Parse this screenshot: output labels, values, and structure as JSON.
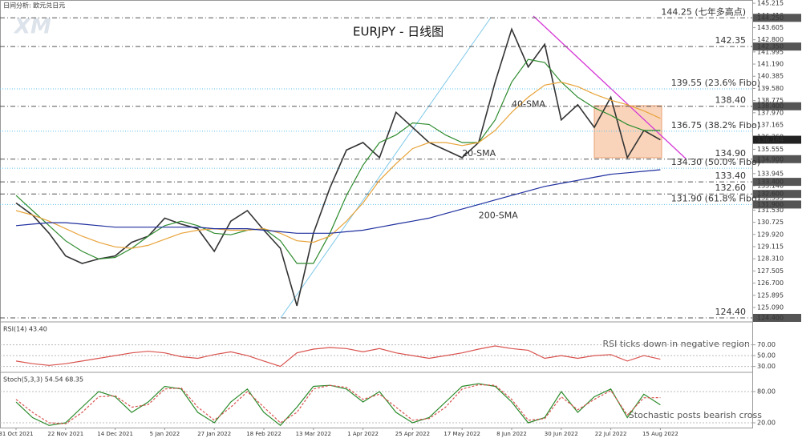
{
  "header": "日间分析: 欧元兑日元",
  "logo": "XM",
  "chart_data": [
    {
      "type": "line",
      "title": "EURJPY - 日线图",
      "categories": [
        "31 Oct 2021",
        null,
        null,
        "22 Nov 2021",
        null,
        null,
        "14 Dec 2021",
        null,
        null,
        "5 Jan 2022",
        null,
        null,
        "27 Jan 2022",
        null,
        null,
        "18 Feb 2022",
        null,
        null,
        "13 Mar 2022",
        null,
        null,
        "1 Apr 2022",
        null,
        null,
        "25 Apr 2022",
        null,
        null,
        "17 May 2022",
        null,
        null,
        "8 Jun 2022",
        null,
        null,
        "30 Jun 2022",
        null,
        null,
        "22 Jul 2022",
        null,
        null,
        "15 Aug 2022"
      ],
      "series": [
        {
          "color": "#333333",
          "values": [
            132.0,
            131.2,
            130.0,
            128.5,
            128.0,
            128.3,
            128.5,
            129.4,
            129.8,
            131.0,
            130.6,
            130.3,
            128.8,
            130.8,
            131.5,
            130.2,
            129.0,
            125.2,
            130.0,
            133.0,
            135.5,
            136.0,
            135.0,
            138.0,
            137.0,
            136.0,
            135.5,
            135.0,
            136.0,
            140.0,
            143.5,
            141.0,
            142.5,
            137.5,
            138.5,
            137.0,
            139.0,
            135.0,
            136.8,
            136.18
          ]
        },
        {
          "name": "20-SMA",
          "color": "#2e8b2e",
          "values": [
            132.5,
            131.5,
            130.5,
            129.5,
            128.8,
            128.3,
            128.4,
            129.0,
            129.8,
            130.5,
            130.8,
            130.5,
            130.0,
            129.9,
            130.2,
            130.3,
            129.5,
            128.0,
            128.0,
            130.0,
            132.5,
            134.5,
            136.0,
            136.5,
            137.3,
            137.2,
            136.5,
            136.0,
            136.0,
            137.5,
            140.0,
            141.5,
            141.3,
            140.0,
            139.0,
            138.3,
            137.8,
            137.2,
            136.8,
            136.8
          ]
        },
        {
          "name": "40-SMA",
          "color": "#e8a33a",
          "values": [
            131.5,
            131.2,
            130.8,
            130.3,
            129.8,
            129.4,
            129.1,
            129.0,
            129.2,
            129.6,
            130.0,
            130.2,
            130.3,
            130.2,
            130.2,
            130.3,
            130.0,
            129.5,
            129.4,
            129.8,
            130.8,
            132.0,
            133.5,
            134.6,
            135.6,
            136.0,
            136.0,
            135.8,
            136.0,
            136.8,
            138.0,
            139.0,
            139.8,
            140.0,
            139.7,
            139.2,
            138.8,
            138.5,
            138.1,
            137.6
          ]
        },
        {
          "name": "200-SMA",
          "color": "#1f2f9e",
          "values": [
            130.5,
            130.6,
            130.7,
            130.7,
            130.6,
            130.5,
            130.4,
            130.4,
            130.4,
            130.4,
            130.4,
            130.4,
            130.3,
            130.3,
            130.3,
            130.2,
            130.1,
            130.0,
            130.0,
            130.0,
            130.1,
            130.2,
            130.4,
            130.6,
            130.8,
            131.0,
            131.3,
            131.6,
            131.9,
            132.2,
            132.5,
            132.8,
            133.1,
            133.3,
            133.5,
            133.7,
            133.9,
            134.0,
            134.1,
            134.2
          ]
        }
      ],
      "ylim": [
        124.24,
        145.43
      ],
      "yticks": [
        {
          "value": 145.215,
          "label": "145.215"
        },
        {
          "value": 144.41,
          "label": "144.410"
        },
        {
          "value": 143.605,
          "label": "143.605"
        },
        {
          "value": 142.8,
          "label": "142.800"
        },
        {
          "value": 141.995,
          "label": "141.995"
        },
        {
          "value": 141.19,
          "label": "141.190"
        },
        {
          "value": 140.385,
          "label": "140.385"
        },
        {
          "value": 139.58,
          "label": "139.580"
        },
        {
          "value": 138.775,
          "label": "138.775"
        },
        {
          "value": 137.97,
          "label": "137.970"
        },
        {
          "value": 137.165,
          "label": "137.165"
        },
        {
          "value": 136.36,
          "label": "136.360"
        },
        {
          "value": 135.555,
          "label": "135.555"
        },
        {
          "value": 134.75,
          "label": "134.750"
        },
        {
          "value": 133.945,
          "label": "133.945"
        },
        {
          "value": 133.14,
          "label": "133.140"
        },
        {
          "value": 132.335,
          "label": "132.335"
        },
        {
          "value": 131.53,
          "label": "131.530"
        },
        {
          "value": 130.725,
          "label": "130.725"
        },
        {
          "value": 129.92,
          "label": "129.920"
        },
        {
          "value": 129.115,
          "label": "129.115"
        },
        {
          "value": 128.31,
          "label": "128.310"
        },
        {
          "value": 127.505,
          "label": "127.505"
        },
        {
          "value": 126.7,
          "label": "126.700"
        },
        {
          "value": 125.895,
          "label": "125.895"
        },
        {
          "value": 125.09,
          "label": "125.090"
        },
        {
          "value": 124.285,
          "label": "124.285"
        }
      ],
      "levels": [
        {
          "value": 144.25,
          "text": "144.25 (七年多高点)",
          "axis_label": "144.250",
          "color": "#e8262a",
          "style": "level"
        },
        {
          "value": 142.35,
          "text": "142.35",
          "axis_label": "142.350",
          "color": "#e8262a",
          "style": "level"
        },
        {
          "value": 139.55,
          "text": "139.55 (23.6% Fibo)",
          "color": "#2aa3d8",
          "style": "fibo"
        },
        {
          "value": 138.4,
          "text": "138.40",
          "axis_label": "138.400",
          "color": "#e8262a",
          "style": "level"
        },
        {
          "value": 136.75,
          "text": "136.75 (38.2% Fibo)",
          "color": "#2aa3d8",
          "style": "fibo"
        },
        {
          "value": 134.9,
          "text": "134.90",
          "axis_label": "134.900",
          "color": "#2c6e2c",
          "style": "level"
        },
        {
          "value": 134.3,
          "text": "134.30 (50.0% Fibo)",
          "color": "#2aa3d8",
          "style": "fibo"
        },
        {
          "value": 133.4,
          "text": "133.40",
          "axis_label": "133.400",
          "color": "#2c6e2c",
          "style": "level"
        },
        {
          "value": 132.6,
          "text": "132.60",
          "axis_label": "132.600",
          "color": "#2c6e2c",
          "style": "level"
        },
        {
          "value": 131.9,
          "text": "131.90 (61.8% Fibo)",
          "axis_label": "131.900",
          "color": "#2aa3d8",
          "style": "fibo"
        },
        {
          "value": 124.4,
          "text": "124.40",
          "axis_label": "124.400",
          "color": "#2c6e2c",
          "style": "level"
        }
      ],
      "last_price": {
        "value": 136.184,
        "label": "136.184"
      }
    },
    {
      "type": "line",
      "title": "RSI(14) 43.40",
      "annotation": "RSI ticks down in negative region",
      "series": [
        {
          "color": "#d9534f",
          "values": [
            40,
            35,
            32,
            35,
            40,
            45,
            50,
            55,
            58,
            55,
            48,
            45,
            52,
            57,
            50,
            40,
            30,
            55,
            62,
            65,
            63,
            57,
            63,
            55,
            50,
            45,
            50,
            55,
            62,
            68,
            63,
            60,
            45,
            50,
            45,
            50,
            52,
            40,
            50,
            43.4
          ]
        }
      ],
      "ylim": [
        22,
        108
      ],
      "yticks": [
        {
          "value": 70,
          "label": "70.00"
        },
        {
          "value": 50,
          "label": "50.00"
        },
        {
          "value": 30,
          "label": "30.00"
        }
      ]
    },
    {
      "type": "line",
      "title": "Stoch(5,3,3) 54.54 68.35",
      "annotation": "Stochastic posts bearish cross",
      "series": [
        {
          "color": "#2a8a2a",
          "values": [
            60,
            30,
            15,
            20,
            50,
            80,
            70,
            40,
            60,
            90,
            85,
            40,
            20,
            60,
            85,
            40,
            15,
            50,
            90,
            92,
            85,
            60,
            80,
            40,
            20,
            30,
            60,
            90,
            95,
            90,
            60,
            20,
            30,
            80,
            40,
            70,
            85,
            30,
            75,
            54.54
          ]
        },
        {
          "color": "#d9534f",
          "dashed": true,
          "values": [
            65,
            40,
            20,
            18,
            40,
            70,
            72,
            50,
            55,
            85,
            87,
            50,
            25,
            50,
            80,
            50,
            20,
            40,
            85,
            92,
            88,
            65,
            75,
            50,
            25,
            28,
            50,
            85,
            93,
            92,
            65,
            25,
            28,
            70,
            45,
            65,
            82,
            35,
            68,
            68.35
          ]
        }
      ],
      "ylim": [
        10.8,
        112.3
      ],
      "yticks": [
        {
          "value": 80,
          "label": "80.00"
        },
        {
          "value": 20,
          "label": "20.00"
        }
      ]
    }
  ]
}
